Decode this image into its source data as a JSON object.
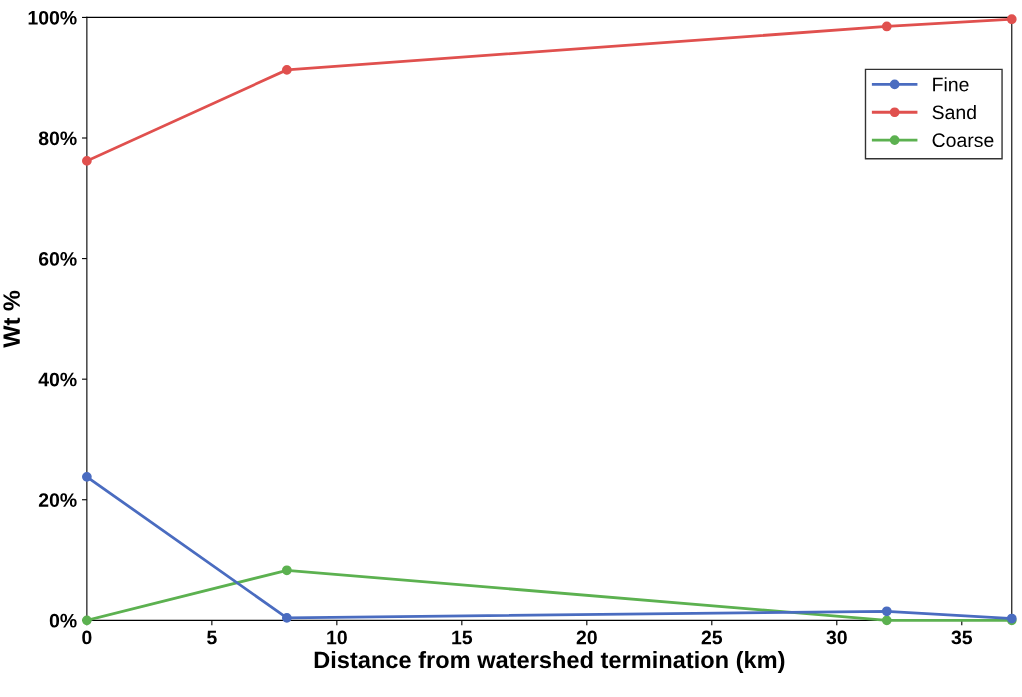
{
  "chart_data": {
    "type": "line",
    "xlabel": "Distance from watershed termination (km)",
    "ylabel": "Wt %",
    "x": [
      0,
      8,
      32,
      37
    ],
    "series": [
      {
        "name": "Fine",
        "color": "#4a6cc0",
        "values": [
          23.8,
          0.4,
          1.5,
          0.3
        ]
      },
      {
        "name": "Sand",
        "color": "#e0504e",
        "values": [
          76.2,
          91.3,
          98.5,
          99.7
        ]
      },
      {
        "name": "Coarse",
        "color": "#5cb150",
        "values": [
          0,
          8.3,
          0,
          0
        ]
      }
    ],
    "xlim": [
      0,
      37
    ],
    "xticks": [
      0,
      5,
      10,
      15,
      20,
      25,
      30,
      35
    ],
    "ylim": [
      0,
      100
    ],
    "yticks": [
      {
        "value": 0,
        "label": "0%"
      },
      {
        "value": 20,
        "label": "20%"
      },
      {
        "value": 40,
        "label": "40%"
      },
      {
        "value": 60,
        "label": "60%"
      },
      {
        "value": 80,
        "label": "80%"
      },
      {
        "value": 100,
        "label": "100%"
      }
    ],
    "grid": false,
    "legend": "top right",
    "marker": "circle",
    "line_style": "solid"
  }
}
